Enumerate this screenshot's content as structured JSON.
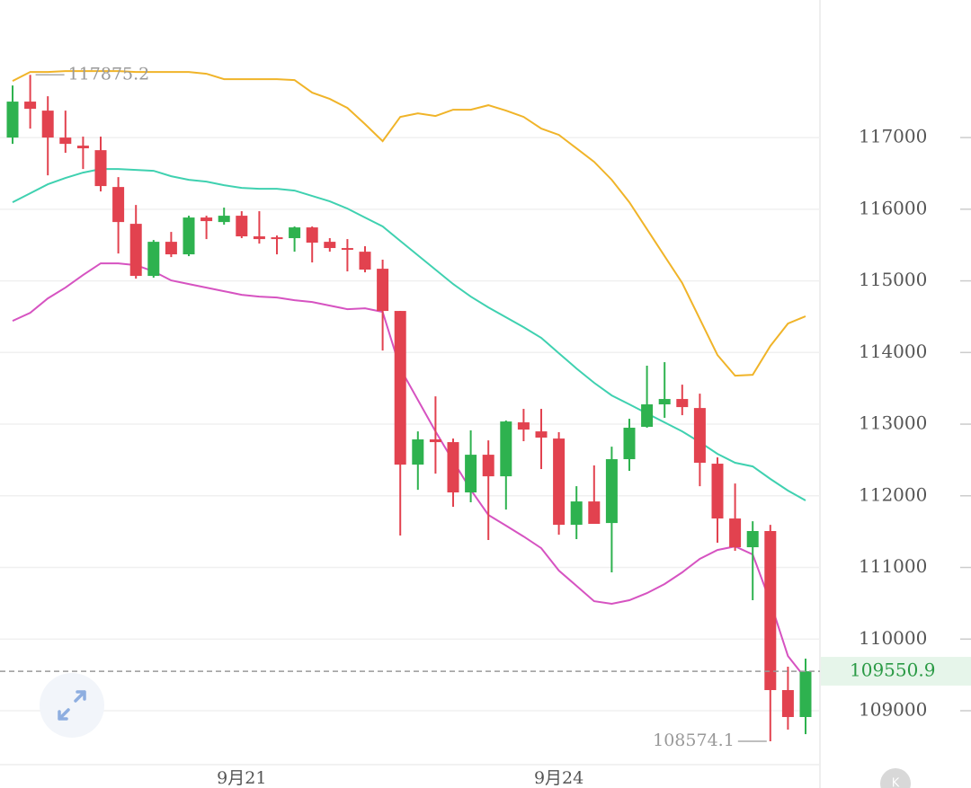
{
  "chart_data": {
    "type": "candlestick",
    "categories": [
      null,
      null,
      null,
      null,
      null,
      null,
      null,
      null,
      null,
      null,
      null,
      null,
      null,
      "9月21",
      null,
      null,
      null,
      null,
      null,
      null,
      null,
      null,
      null,
      null,
      null,
      null,
      null,
      null,
      null,
      null,
      null,
      "9月24",
      null,
      null,
      null,
      null,
      null,
      null,
      null,
      null,
      null,
      null,
      null,
      null,
      null,
      null
    ],
    "open": [
      117000,
      117502,
      117376,
      117000,
      116887,
      116824,
      116310,
      115796,
      115069,
      115545,
      115370,
      115884,
      115821,
      115909,
      115621,
      115608,
      115596,
      115746,
      115545,
      115458,
      115407,
      115169,
      114580,
      112435,
      112787,
      112749,
      112047,
      112573,
      112272,
      113025,
      112899,
      112799,
      111595,
      111921,
      111620,
      112511,
      112962,
      113276,
      113351,
      113225,
      112448,
      111683,
      111282,
      111508,
      109288,
      108912
    ],
    "high": [
      117727,
      117875.2,
      117577,
      117376,
      117013,
      117013,
      116448,
      116059,
      115570,
      115683,
      115909,
      115909,
      116022,
      115972,
      115972,
      115633,
      115759,
      115759,
      115596,
      115583,
      115483,
      115295,
      114580,
      112899,
      113388,
      112799,
      112912,
      112774,
      113050,
      113213,
      113213,
      112887,
      112134,
      112423,
      112686,
      113075,
      113815,
      113865,
      113551,
      113426,
      112536,
      112172,
      111645,
      111595,
      109614,
      109727
    ],
    "low": [
      116912,
      117125,
      116473,
      116787,
      116561,
      116248,
      115382,
      115031,
      115044,
      115332,
      115345,
      115583,
      115784,
      115596,
      115520,
      115370,
      115407,
      115257,
      115407,
      115132,
      115119,
      114028,
      111445,
      112084,
      112310,
      111846,
      111909,
      111382,
      111808,
      112762,
      112373,
      111457,
      111395,
      111608,
      110931,
      112348,
      112950,
      113088,
      113125,
      112134,
      111345,
      111232,
      110542,
      108574.1,
      108736,
      108673
    ],
    "close": [
      117502,
      117401,
      117000,
      116912,
      116850,
      116323,
      115821,
      115069,
      115545,
      115370,
      115884,
      115834,
      115909,
      115621,
      115583,
      115596,
      115746,
      115533,
      115458,
      115433,
      115157,
      114580,
      112435,
      112787,
      112749,
      112047,
      112573,
      112272,
      113037,
      112924,
      112812,
      111595,
      111921,
      111608,
      112511,
      112950,
      113276,
      113351,
      113238,
      112461,
      111683,
      111282,
      111508,
      109288,
      108912,
      109550.9
    ],
    "up_color": "#2eb24f",
    "down_color": "#e2424f",
    "upper_band": {
      "color": "#f0b429",
      "values": [
        117790,
        117915,
        117915,
        117928,
        117928,
        117928,
        117928,
        117915,
        117915,
        117915,
        117915,
        117890,
        117815,
        117815,
        117815,
        117815,
        117803,
        117627,
        117539,
        117414,
        117188,
        116950,
        117288,
        117339,
        117301,
        117389,
        117389,
        117451,
        117376,
        117288,
        117125,
        117038,
        116850,
        116661,
        116411,
        116097,
        115721,
        115345,
        114969,
        114467,
        113965,
        113677,
        113689,
        114091,
        114404,
        114505
      ]
    },
    "middle_band": {
      "color": "#3fd1b0",
      "values": [
        116097,
        116223,
        116348,
        116436,
        116511,
        116561,
        116561,
        116549,
        116536,
        116461,
        116411,
        116386,
        116335,
        116298,
        116285,
        116285,
        116260,
        116185,
        116110,
        116009,
        115884,
        115759,
        115558,
        115357,
        115157,
        114956,
        114780,
        114630,
        114492,
        114354,
        114204,
        113990,
        113777,
        113577,
        113401,
        113276,
        113150,
        113025,
        112899,
        112749,
        112586,
        112461,
        112410,
        112235,
        112072,
        111934
      ]
    },
    "lower_band": {
      "color": "#d653c1",
      "values": [
        114442,
        114555,
        114755,
        114906,
        115081,
        115244,
        115244,
        115219,
        115132,
        115006,
        114956,
        114906,
        114856,
        114805,
        114780,
        114768,
        114730,
        114705,
        114655,
        114605,
        114617,
        114567,
        113777,
        113338,
        112899,
        112486,
        112084,
        111733,
        111583,
        111432,
        111269,
        110956,
        110743,
        110529,
        110492,
        110542,
        110642,
        110768,
        110931,
        111119,
        111244,
        111294,
        111181,
        110517,
        109764,
        109451
      ]
    },
    "ylim": [
      108260,
      118920
    ],
    "yticks": [
      109000,
      110000,
      111000,
      112000,
      113000,
      114000,
      115000,
      116000,
      117000
    ],
    "grid": true
  }
}
